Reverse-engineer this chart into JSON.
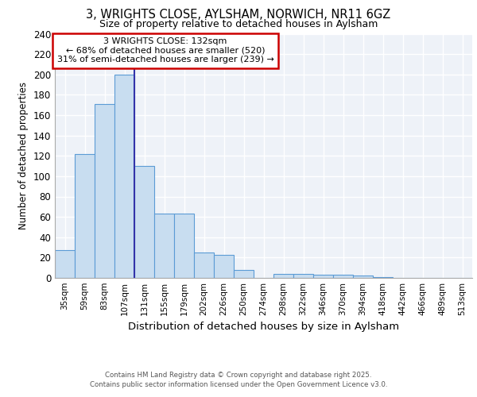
{
  "title_line1": "3, WRIGHTS CLOSE, AYLSHAM, NORWICH, NR11 6GZ",
  "title_line2": "Size of property relative to detached houses in Aylsham",
  "xlabel": "Distribution of detached houses by size in Aylsham",
  "ylabel": "Number of detached properties",
  "footer_line1": "Contains HM Land Registry data © Crown copyright and database right 2025.",
  "footer_line2": "Contains public sector information licensed under the Open Government Licence v3.0.",
  "categories": [
    "35sqm",
    "59sqm",
    "83sqm",
    "107sqm",
    "131sqm",
    "155sqm",
    "179sqm",
    "202sqm",
    "226sqm",
    "250sqm",
    "274sqm",
    "298sqm",
    "322sqm",
    "346sqm",
    "370sqm",
    "394sqm",
    "418sqm",
    "442sqm",
    "466sqm",
    "489sqm",
    "513sqm"
  ],
  "values": [
    27,
    122,
    171,
    200,
    110,
    63,
    63,
    25,
    23,
    8,
    0,
    4,
    4,
    3,
    3,
    2,
    1,
    0,
    0,
    0,
    0
  ],
  "bar_color": "#c8ddf0",
  "bar_edge_color": "#5b9bd5",
  "property_label": "3 WRIGHTS CLOSE: 132sqm",
  "pct_smaller": 68,
  "pct_smaller_count": 520,
  "pct_larger": 31,
  "pct_larger_count": 239,
  "annotation_box_color": "#ffffff",
  "annotation_box_edge_color": "#cc0000",
  "vline_color": "#3333aa",
  "ylim": [
    0,
    240
  ],
  "yticks": [
    0,
    20,
    40,
    60,
    80,
    100,
    120,
    140,
    160,
    180,
    200,
    220,
    240
  ],
  "bg_color": "#eef2f8",
  "grid_color": "#ffffff",
  "fig_bg_color": "#ffffff",
  "vline_bin_index": 4
}
